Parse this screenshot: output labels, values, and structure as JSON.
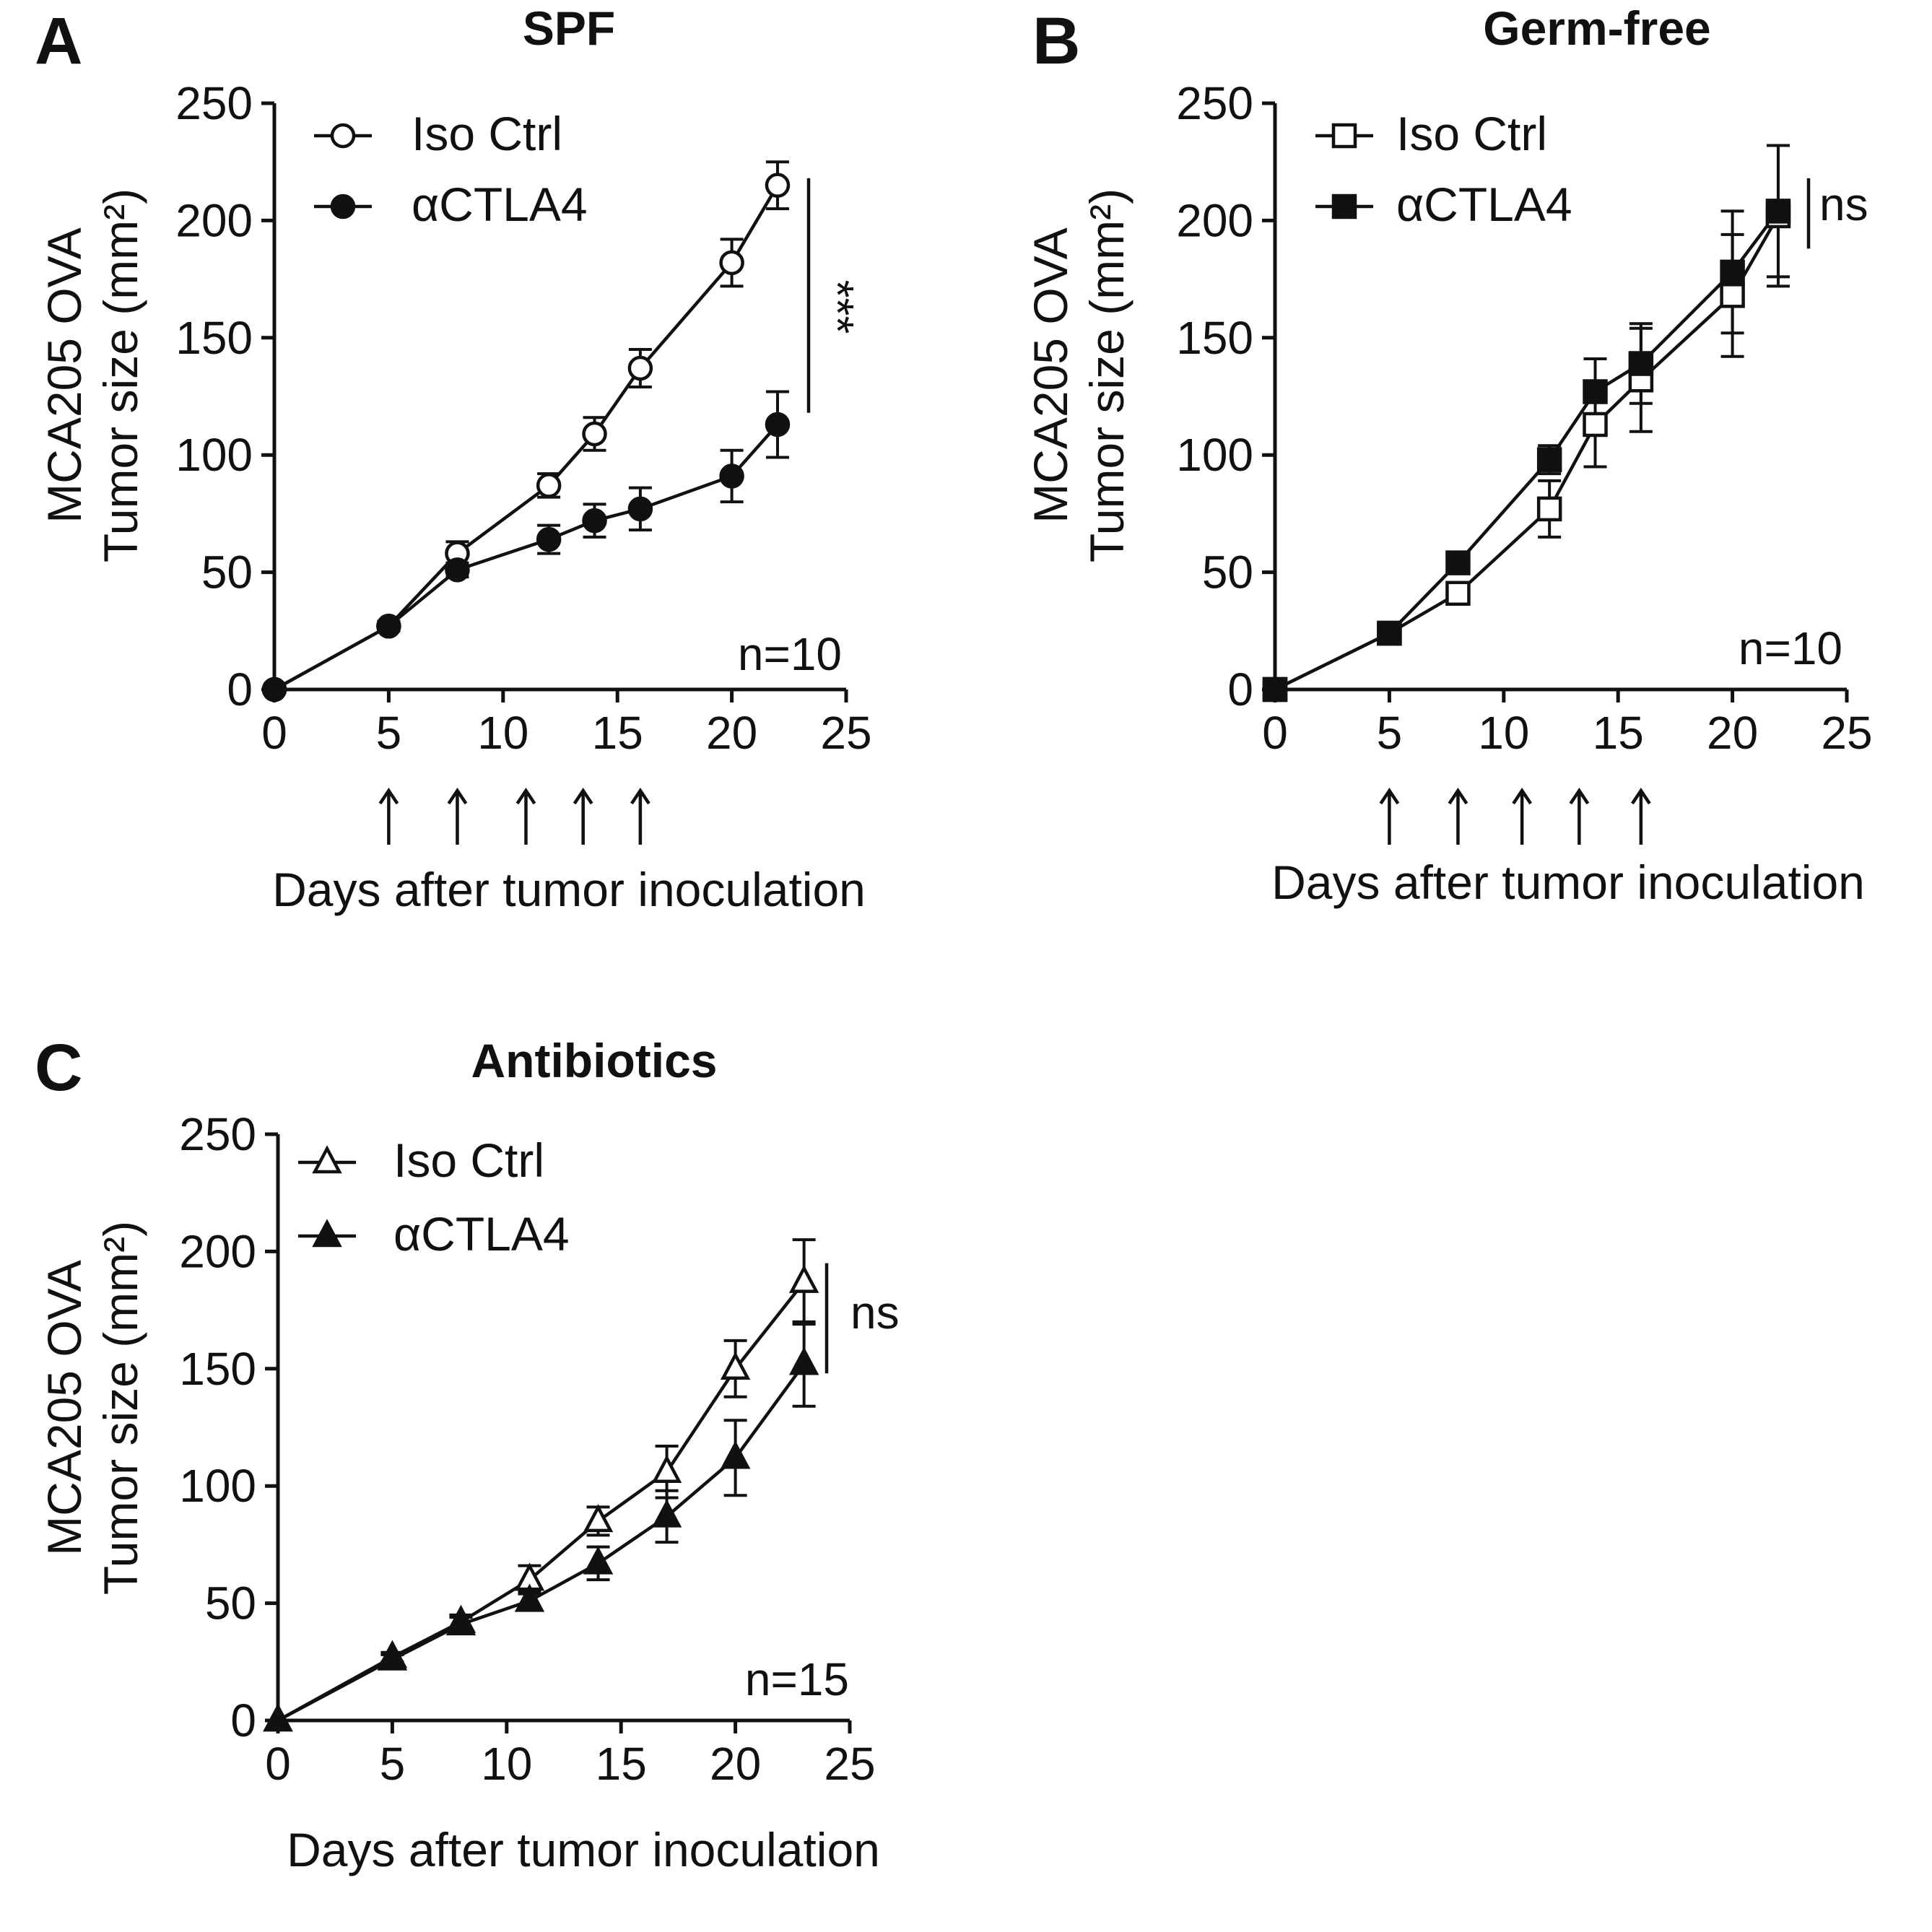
{
  "chart_data": [
    {
      "panel": "A",
      "type": "line",
      "title": "SPF",
      "xlabel": "Days after tumor inoculation",
      "ylabel_line1": "MCA205 OVA",
      "ylabel_line2": "Tumor  size (mm²)",
      "xlim": [
        0,
        25
      ],
      "ylim": [
        0,
        250
      ],
      "xticks": [
        "0",
        "5",
        "10",
        "15",
        "20",
        "25"
      ],
      "yticks": [
        "0",
        "50",
        "100",
        "150",
        "200",
        "250"
      ],
      "grid": false,
      "legend_position": "top-left",
      "marker": "circle",
      "series": [
        {
          "name": "Iso Ctrl",
          "filled": false,
          "x": [
            0,
            5,
            8,
            12,
            14,
            16,
            20,
            22
          ],
          "y": [
            0,
            27,
            58,
            87,
            109,
            137,
            182,
            215
          ],
          "err": [
            0,
            2,
            5,
            5,
            7,
            8,
            10,
            10
          ]
        },
        {
          "name": "αCTLA4",
          "filled": true,
          "x": [
            0,
            5,
            8,
            12,
            14,
            16,
            20,
            22
          ],
          "y": [
            0,
            27,
            51,
            64,
            72,
            77,
            91,
            113
          ],
          "err": [
            0,
            2,
            3,
            6,
            7,
            9,
            11,
            14
          ]
        }
      ],
      "significance": "***",
      "arrow_days": [
        5,
        8,
        11,
        13.5,
        16
      ],
      "n_label": "n=10"
    },
    {
      "panel": "B",
      "type": "line",
      "title": "Germ-free",
      "xlabel": "Days after tumor inoculation",
      "ylabel_line1": "MCA205 OVA",
      "ylabel_line2": "Tumor  size (mm²)",
      "xlim": [
        0,
        25
      ],
      "ylim": [
        0,
        250
      ],
      "xticks": [
        "0",
        "5",
        "10",
        "15",
        "20",
        "25"
      ],
      "yticks": [
        "0",
        "50",
        "100",
        "150",
        "200",
        "250"
      ],
      "grid": false,
      "legend_position": "top-left",
      "marker": "square",
      "series": [
        {
          "name": "Iso Ctrl",
          "filled": false,
          "x": [
            0,
            5,
            8,
            12,
            14,
            16,
            20,
            22
          ],
          "y": [
            0,
            24,
            41,
            77,
            113,
            132,
            168,
            202
          ],
          "err": [
            0,
            2,
            4,
            12,
            18,
            22,
            26,
            30
          ]
        },
        {
          "name": "αCTLA4",
          "filled": true,
          "x": [
            0,
            5,
            8,
            12,
            14,
            16,
            20,
            22
          ],
          "y": [
            0,
            24,
            54,
            98,
            127,
            139,
            178,
            204
          ],
          "err": [
            0,
            2,
            4,
            6,
            14,
            17,
            26,
            28
          ]
        }
      ],
      "significance": "ns",
      "arrow_days": [
        5,
        8,
        10.8,
        13.3,
        16
      ],
      "n_label": "n=10"
    },
    {
      "panel": "C",
      "type": "line",
      "title": "Antibiotics",
      "xlabel": "Days after tumor inoculation",
      "ylabel_line1": "MCA205 OVA",
      "ylabel_line2": "Tumor  size (mm²)",
      "xlim": [
        0,
        25
      ],
      "ylim": [
        0,
        250
      ],
      "xticks": [
        "0",
        "5",
        "10",
        "15",
        "20",
        "25"
      ],
      "yticks": [
        "0",
        "50",
        "100",
        "150",
        "200",
        "250"
      ],
      "grid": false,
      "legend_position": "top-left",
      "marker": "triangle",
      "series": [
        {
          "name": "Iso Ctrl",
          "filled": false,
          "x": [
            0,
            5,
            8,
            11,
            14,
            17,
            20,
            23
          ],
          "y": [
            0,
            27,
            42,
            60,
            85,
            106,
            150,
            187
          ],
          "err": [
            0,
            2,
            3,
            6,
            6,
            11,
            12,
            18
          ]
        },
        {
          "name": "αCTLA4",
          "filled": true,
          "x": [
            0,
            5,
            8,
            11,
            14,
            17,
            20,
            23
          ],
          "y": [
            0,
            26,
            41,
            51,
            67,
            87,
            112,
            152
          ],
          "err": [
            0,
            2,
            3,
            4,
            7,
            11,
            16,
            18
          ]
        }
      ],
      "significance": "ns",
      "arrow_days": [],
      "n_label": "n=15"
    }
  ]
}
